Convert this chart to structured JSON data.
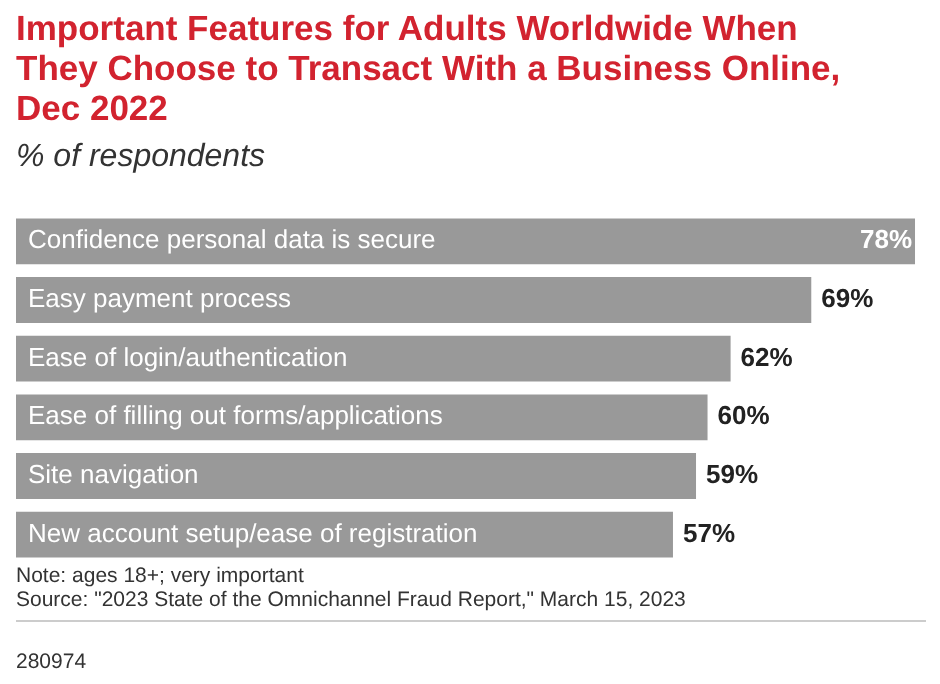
{
  "chart_data": {
    "type": "bar",
    "orientation": "horizontal",
    "title": "Important Features for Adults Worldwide When They Choose to Transact With a Business Online, Dec 2022",
    "subtitle": "% of respondents",
    "categories": [
      "Confidence personal data is secure",
      "Easy payment process",
      "Ease of login/authentication",
      "Ease of filling out forms/applications",
      "Site navigation",
      "New account setup/ease of registration"
    ],
    "values": [
      78,
      69,
      62,
      60,
      59,
      57
    ],
    "color": "#999999",
    "data_labels": true,
    "value_labels": [
      "78%",
      "69%",
      "62%",
      "60%",
      "59%",
      "57%"
    ],
    "legend": false,
    "annotations": [
      "Note: ages 18+; very important",
      "Source: \"2023 State of the Omnichannel Fraud Report,\" March 15, 2023",
      "280974"
    ]
  }
}
